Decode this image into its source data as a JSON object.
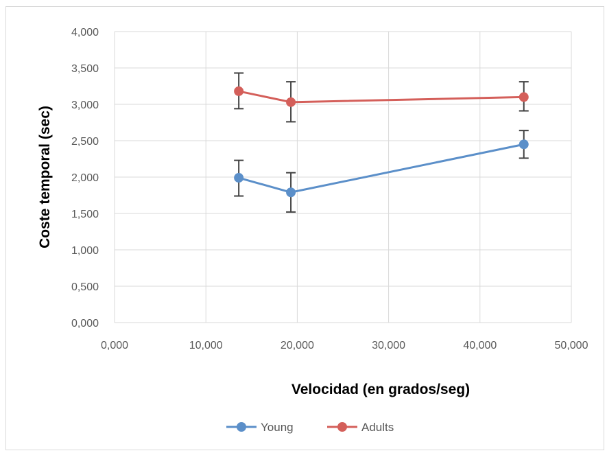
{
  "chart_data": {
    "type": "scatter",
    "xlabel": "Velocidad (en grados/seg)",
    "ylabel": "Coste temporal (sec)",
    "xlim": [
      0,
      50
    ],
    "ylim": [
      0,
      4
    ],
    "x_ticks": [
      "0,000",
      "10,000",
      "20,000",
      "30,000",
      "40,000",
      "50,000"
    ],
    "y_ticks": [
      "0,000",
      "0,500",
      "1,000",
      "1,500",
      "2,000",
      "2,500",
      "3,000",
      "3,500",
      "4,000"
    ],
    "grid": true,
    "legend_position": "bottom",
    "lines": true,
    "error_bars": true,
    "series": [
      {
        "name": "Young",
        "color": "#5b8fc9",
        "points": [
          {
            "x": 13.6,
            "y": 1.99,
            "err_low": 1.74,
            "err_high": 2.23
          },
          {
            "x": 19.3,
            "y": 1.79,
            "err_low": 1.52,
            "err_high": 2.06
          },
          {
            "x": 44.8,
            "y": 2.45,
            "err_low": 2.26,
            "err_high": 2.64
          }
        ]
      },
      {
        "name": "Adults",
        "color": "#d45f5a",
        "points": [
          {
            "x": 13.6,
            "y": 3.18,
            "err_low": 2.94,
            "err_high": 3.43
          },
          {
            "x": 19.3,
            "y": 3.03,
            "err_low": 2.76,
            "err_high": 3.31
          },
          {
            "x": 44.8,
            "y": 3.1,
            "err_low": 2.91,
            "err_high": 3.31
          }
        ]
      }
    ]
  }
}
